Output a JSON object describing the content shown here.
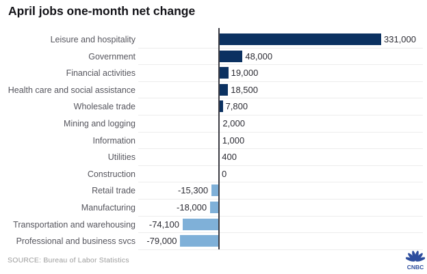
{
  "title": "April jobs one-month net change",
  "source": "SOURCE: Bureau of Labor Statistics",
  "logo_text": "CNBC",
  "colors": {
    "positive_bar": "#0b3161",
    "negative_bar": "#7fb0d8",
    "axis_line": "#3c3c43",
    "gridline": "#ececec",
    "title_text": "#121217",
    "category_text": "#55555d",
    "value_text": "#2b2b33",
    "source_text": "#9b9b9b",
    "logo_color": "#2e4e9e"
  },
  "chart_data": {
    "type": "bar",
    "orientation": "horizontal",
    "title": "April jobs one-month net change",
    "xlabel": "",
    "ylabel": "",
    "xlim": [
      -165000,
      415000
    ],
    "grid": "horizontal row separators only",
    "legend": "none",
    "zero_axis_shown": true,
    "categories": [
      "Leisure and hospitality",
      "Government",
      "Financial activities",
      "Health care and social assistance",
      "Wholesale trade",
      "Mining and logging",
      "Information",
      "Utilities",
      "Construction",
      "Retail trade",
      "Manufacturing",
      "Transportation and warehousing",
      "Professional and business svcs"
    ],
    "values": [
      331000,
      48000,
      19000,
      18500,
      7800,
      2000,
      1000,
      400,
      0,
      -15300,
      -18000,
      -74100,
      -79000
    ],
    "value_labels": [
      "331,000",
      "48,000",
      "19,000",
      "18,500",
      "7,800",
      "2,000",
      "1,000",
      "400",
      "0",
      "-15,300",
      "-18,000",
      "-74,100",
      "-79,000"
    ]
  }
}
